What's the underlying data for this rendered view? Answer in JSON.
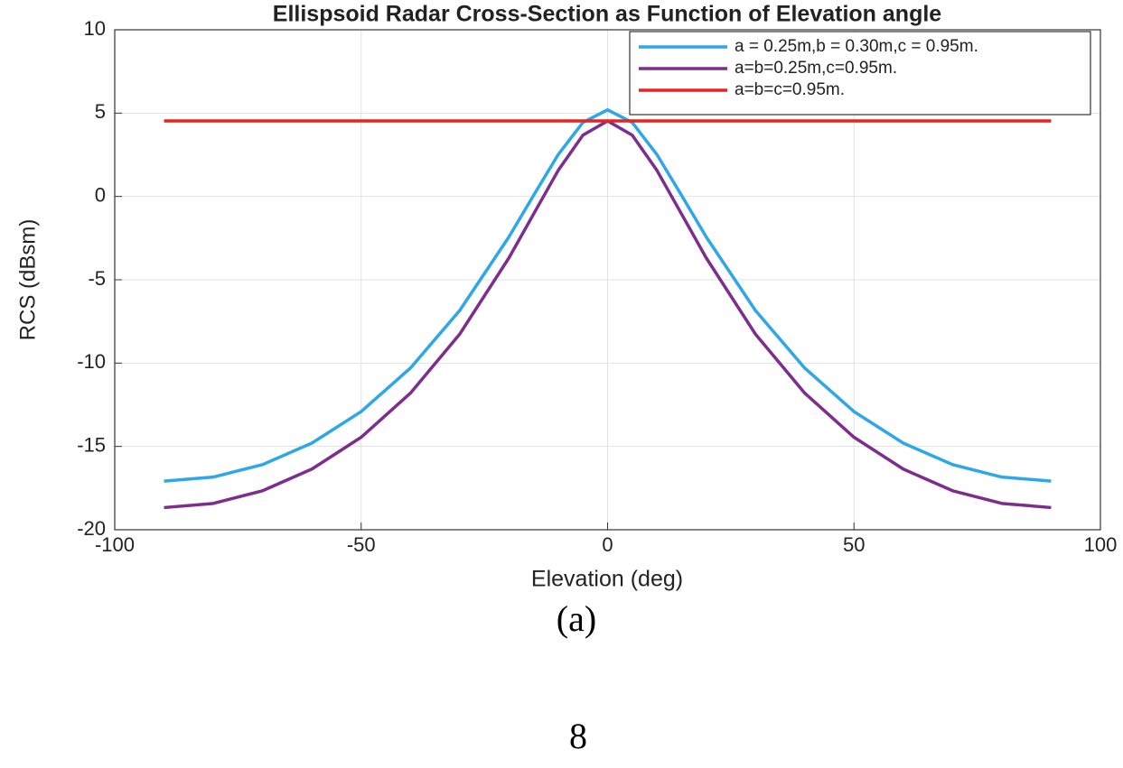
{
  "chart_data": {
    "type": "line",
    "title": "Ellispsoid Radar Cross-Section as Function of Elevation angle",
    "x_label": "Elevation (deg)",
    "y_label": "RCS (dBsm)",
    "x": [
      -90,
      -80,
      -70,
      -60,
      -50,
      -40,
      -30,
      -20,
      -15,
      -10,
      -5,
      0,
      5,
      10,
      15,
      20,
      30,
      40,
      50,
      60,
      70,
      80,
      90
    ],
    "series": [
      {
        "name": "a = 0.25m,b = 0.30m,c = 0.95m.",
        "color": "#2ea7e8",
        "values": [
          -17.08,
          -16.84,
          -16.09,
          -14.8,
          -12.91,
          -10.3,
          -6.84,
          -2.42,
          0.07,
          2.52,
          4.44,
          5.2,
          4.44,
          2.52,
          0.07,
          -2.42,
          -6.84,
          -10.3,
          -12.91,
          -14.8,
          -16.09,
          -16.84,
          -17.08
        ]
      },
      {
        "name": "a=b=0.25m,c=0.95m.",
        "color": "#7d2e8d",
        "values": [
          -18.67,
          -18.42,
          -17.66,
          -16.36,
          -14.45,
          -11.8,
          -8.26,
          -3.68,
          -1.05,
          1.57,
          3.68,
          4.53,
          3.68,
          1.57,
          -1.05,
          -3.68,
          -8.26,
          -11.8,
          -14.45,
          -16.36,
          -17.66,
          -18.42,
          -18.67
        ]
      },
      {
        "name": "a=b=c=0.95m.",
        "color": "#e52421",
        "values": [
          4.53,
          4.53,
          4.53,
          4.53,
          4.53,
          4.53,
          4.53,
          4.53,
          4.53,
          4.53,
          4.53,
          4.53,
          4.53,
          4.53,
          4.53,
          4.53,
          4.53,
          4.53,
          4.53,
          4.53,
          4.53,
          4.53,
          4.53
        ]
      }
    ],
    "xlim": [
      -100,
      100
    ],
    "xticks": [
      -100,
      -50,
      0,
      50,
      100
    ],
    "ylim": [
      -20,
      10
    ],
    "yticks": [
      -20,
      -15,
      -10,
      -5,
      0,
      5,
      10
    ],
    "grid": true,
    "legend": "top-right"
  },
  "caption": "(a)",
  "page_number": "8"
}
